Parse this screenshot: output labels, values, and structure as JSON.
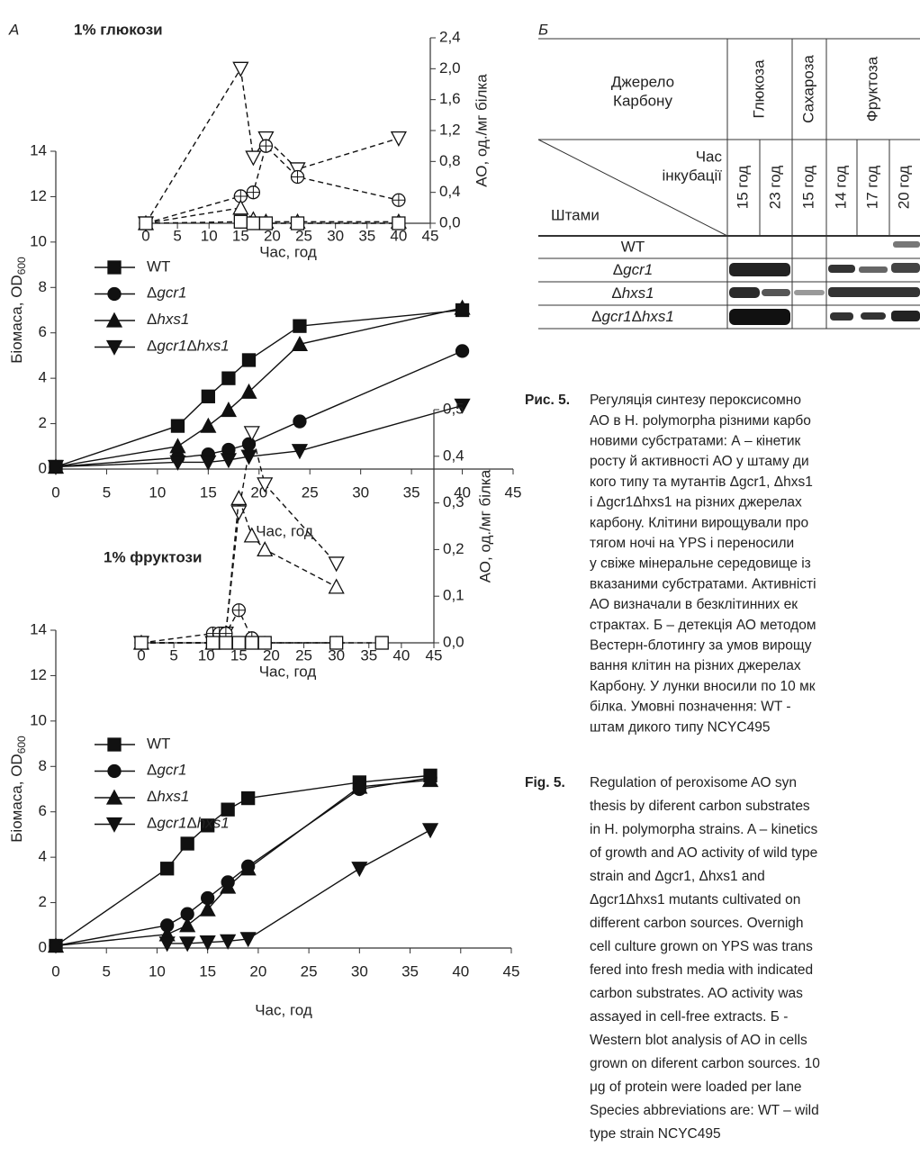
{
  "panel_labels": [
    "А",
    "Б"
  ],
  "chart_data": [
    {
      "type": "line",
      "title": "1% глюкози",
      "xlabel": "Час, год",
      "ylabel": {
        "text": "Біомаса, OD",
        "subscript": "600"
      },
      "xlim": [
        0,
        45
      ],
      "xticks": [
        0,
        5,
        10,
        15,
        20,
        25,
        30,
        35,
        40,
        45
      ],
      "ylim": [
        0,
        14
      ],
      "yticks": [
        0,
        2,
        4,
        6,
        8,
        10,
        12,
        14
      ],
      "series": [
        {
          "name": "WT",
          "marker": "square",
          "filled": true,
          "line_style": "solid",
          "color": "#111111",
          "x": [
            0,
            12,
            15,
            17,
            19,
            24,
            40
          ],
          "values": [
            0.1,
            1.9,
            3.2,
            4.0,
            4.8,
            6.3,
            7.0
          ]
        },
        {
          "name": "Δgcr1",
          "marker": "circle",
          "filled": true,
          "line_style": "solid",
          "color": "#111111",
          "x": [
            0,
            12,
            15,
            17,
            19,
            24,
            40
          ],
          "values": [
            0.1,
            0.5,
            0.65,
            0.85,
            1.1,
            2.1,
            5.2
          ]
        },
        {
          "name": "Δhxs1",
          "marker": "triangle-up",
          "filled": true,
          "line_style": "solid",
          "color": "#111111",
          "x": [
            0,
            12,
            15,
            17,
            19,
            24,
            40
          ],
          "values": [
            0.1,
            1.0,
            1.9,
            2.6,
            3.4,
            5.5,
            7.1
          ]
        },
        {
          "name": "Δgcr1Δhxs1",
          "marker": "triangle-down",
          "filled": true,
          "line_style": "solid",
          "color": "#111111",
          "x": [
            0,
            12,
            15,
            17,
            19,
            24,
            40
          ],
          "values": [
            0.1,
            0.3,
            0.3,
            0.4,
            0.55,
            0.8,
            2.8
          ]
        }
      ]
    },
    {
      "type": "line",
      "xlabel": "Час, год",
      "ylabel": "АО, од./мг білка",
      "y_axis": "right",
      "xlim": [
        0,
        45
      ],
      "xticks": [
        0,
        5,
        10,
        15,
        20,
        25,
        30,
        35,
        40,
        45
      ],
      "ylim": [
        0,
        2.4
      ],
      "yticks": [
        {
          "value": 0,
          "label": "0,0"
        },
        {
          "value": 0.4,
          "label": "0,4"
        },
        {
          "value": 0.8,
          "label": "0,8"
        },
        {
          "value": 1.2,
          "label": "1,2"
        },
        {
          "value": 1.6,
          "label": "1,6"
        },
        {
          "value": 2.0,
          "label": "2,0"
        },
        {
          "value": 2.4,
          "label": "2,4"
        }
      ],
      "series": [
        {
          "marker": "triangle-down",
          "filled": false,
          "line_style": "dashed",
          "color": "#111111",
          "x": [
            0,
            15,
            17,
            19,
            24,
            40
          ],
          "values": [
            0,
            2.0,
            0.85,
            1.1,
            0.7,
            1.1
          ]
        },
        {
          "marker": "circle-plus",
          "filled": false,
          "line_style": "dashed",
          "color": "#111111",
          "x": [
            0,
            15,
            17,
            19,
            24,
            40
          ],
          "values": [
            0,
            0.35,
            0.4,
            1.0,
            0.6,
            0.3
          ]
        },
        {
          "marker": "triangle-up",
          "filled": false,
          "line_style": "dashed",
          "color": "#111111",
          "x": [
            0,
            15,
            17,
            19,
            24,
            40
          ],
          "values": [
            0,
            0.2,
            0.05,
            0.02,
            0.02,
            0.02
          ]
        },
        {
          "marker": "square",
          "filled": false,
          "line_style": "dashed",
          "color": "#111111",
          "x": [
            0,
            15,
            17,
            19,
            24,
            40
          ],
          "values": [
            0,
            0.02,
            0,
            0,
            0,
            0
          ]
        }
      ]
    },
    {
      "type": "line",
      "title": "1% фруктози",
      "xlabel": "Час, год",
      "ylabel": {
        "text": "Біомаса, OD",
        "subscript": "600"
      },
      "xlim": [
        0,
        45
      ],
      "xticks": [
        0,
        5,
        10,
        15,
        20,
        25,
        30,
        35,
        40,
        45
      ],
      "ylim": [
        0,
        14
      ],
      "yticks": [
        0,
        2,
        4,
        6,
        8,
        10,
        12,
        14
      ],
      "series": [
        {
          "name": "WT",
          "marker": "square",
          "filled": true,
          "line_style": "solid",
          "color": "#111111",
          "x": [
            0,
            11,
            13,
            15,
            17,
            19,
            30,
            37
          ],
          "values": [
            0.1,
            3.5,
            4.6,
            5.4,
            6.1,
            6.6,
            7.3,
            7.6
          ]
        },
        {
          "name": "Δgcr1",
          "marker": "circle",
          "filled": true,
          "line_style": "solid",
          "color": "#111111",
          "x": [
            0,
            11,
            13,
            15,
            17,
            19,
            30,
            37
          ],
          "values": [
            0.1,
            1.0,
            1.5,
            2.2,
            2.9,
            3.6,
            7.0,
            7.5
          ]
        },
        {
          "name": "Δhxs1",
          "marker": "triangle-up",
          "filled": true,
          "line_style": "solid",
          "color": "#111111",
          "x": [
            0,
            11,
            13,
            15,
            17,
            19,
            30,
            37
          ],
          "values": [
            0.1,
            0.6,
            1.0,
            1.7,
            2.7,
            3.5,
            7.1,
            7.4
          ]
        },
        {
          "name": "Δgcr1Δhxs1",
          "marker": "triangle-down",
          "filled": true,
          "line_style": "solid",
          "color": "#111111",
          "x": [
            11,
            13,
            15,
            17,
            19,
            30,
            37
          ],
          "values": [
            0.2,
            0.2,
            0.25,
            0.3,
            0.4,
            3.5,
            5.2
          ]
        }
      ]
    },
    {
      "type": "line",
      "xlabel": "Час, год",
      "ylabel": "АО, од./мг білка",
      "y_axis": "right",
      "xlim": [
        0,
        45
      ],
      "xticks": [
        0,
        5,
        10,
        15,
        20,
        25,
        30,
        35,
        40,
        45
      ],
      "ylim": [
        0,
        0.5
      ],
      "yticks": [
        {
          "value": 0,
          "label": "0,0"
        },
        {
          "value": 0.1,
          "label": "0,1"
        },
        {
          "value": 0.2,
          "label": "0,2"
        },
        {
          "value": 0.3,
          "label": "0,3"
        },
        {
          "value": 0.4,
          "label": "0,4"
        },
        {
          "value": 0.5,
          "label": "0,5"
        }
      ],
      "series": [
        {
          "marker": "triangle-down",
          "filled": false,
          "line_style": "dashed",
          "color": "#111111",
          "x": [
            0,
            11,
            12,
            13,
            15,
            17,
            19,
            30
          ],
          "values": [
            0,
            0,
            0.01,
            0.02,
            0.28,
            0.45,
            0.34,
            0.17
          ]
        },
        {
          "marker": "triangle-up",
          "filled": false,
          "line_style": "dashed",
          "color": "#111111",
          "x": [
            0,
            11,
            12,
            13,
            15,
            17,
            19,
            30
          ],
          "values": [
            0,
            0,
            0.01,
            0.02,
            0.31,
            0.23,
            0.2,
            0.12
          ]
        },
        {
          "marker": "circle-plus",
          "filled": false,
          "line_style": "dashed",
          "color": "#111111",
          "x": [
            0,
            11,
            12,
            13,
            15,
            17,
            19,
            30
          ],
          "values": [
            0,
            0.02,
            0.02,
            0.02,
            0.07,
            0.01,
            0,
            0
          ]
        },
        {
          "marker": "square",
          "filled": false,
          "line_style": "dashed",
          "color": "#111111",
          "x": [
            0,
            11,
            13,
            15,
            17,
            19,
            30,
            37
          ],
          "values": [
            0,
            0,
            0,
            0,
            0,
            0,
            0,
            0
          ]
        }
      ]
    }
  ],
  "table": {
    "row_header": [
      "Джерело",
      "Карбону"
    ],
    "col_header": [
      "Час",
      "інкубації"
    ],
    "row_label": "Штами",
    "groups": [
      {
        "label": "Глюкоза",
        "times": [
          "15 год",
          "23 год"
        ]
      },
      {
        "label": "Сахароза",
        "times": [
          "15 год"
        ]
      },
      {
        "label": "Фруктоза",
        "times": [
          "14 год",
          "17 год",
          "20 год"
        ]
      }
    ],
    "strains": [
      "WT",
      "Δgcr1",
      "Δhxs1",
      "Δgcr1Δhxs1"
    ]
  },
  "caption": {
    "ua": {
      "label": "Рис. 5.",
      "lines": [
        "Регуляція синтезу пероксисомно",
        "АО в H. polymorpha різними карбо",
        "новими субстратами: А – кінетик",
        "росту й активності АО у штаму ди",
        "кого типу та мутантів Δgcr1, Δhxs1",
        "і Δgcr1Δhxs1 на різних джерелах",
        "карбону. Клітини вирощували про",
        "тягом ночі на YPS і переносили",
        "у свіже мінеральне середовище із",
        "вказаними субстратами. Активністі",
        "АО визначали в безклітинних ек",
        "страктах. Б – детекція АО методом",
        "Вестерн-блотингу за умов вирощу",
        "вання клітин на різних джерелах",
        "Карбону. У лунки вносили по 10 мк",
        "білка. Умовні позначення: WT -",
        "штам дикого типу NCYC495"
      ]
    },
    "en": {
      "label": "Fig. 5.",
      "lines": [
        "Regulation of peroxisome AO syn",
        "thesis by diferent carbon substrates",
        "in H. polymorpha strains. A – kinetics",
        "of growth and AO activity of wild type",
        "strain and Δgcr1, Δhxs1 and",
        "Δgcr1Δhxs1 mutants cultivated on",
        "different carbon sources. Overnigh",
        "cell culture grown on YPS was trans",
        "fered into fresh media with indicated",
        "carbon substrates. AO activity was",
        "assayed in cell-free extracts. Б -",
        "Western blot analysis of AO in cells",
        "grown on diferent carbon sources. 10",
        "μg of protein were loaded per lane",
        "Species abbreviations are: WT – wild",
        "type strain NCYC495"
      ]
    }
  }
}
